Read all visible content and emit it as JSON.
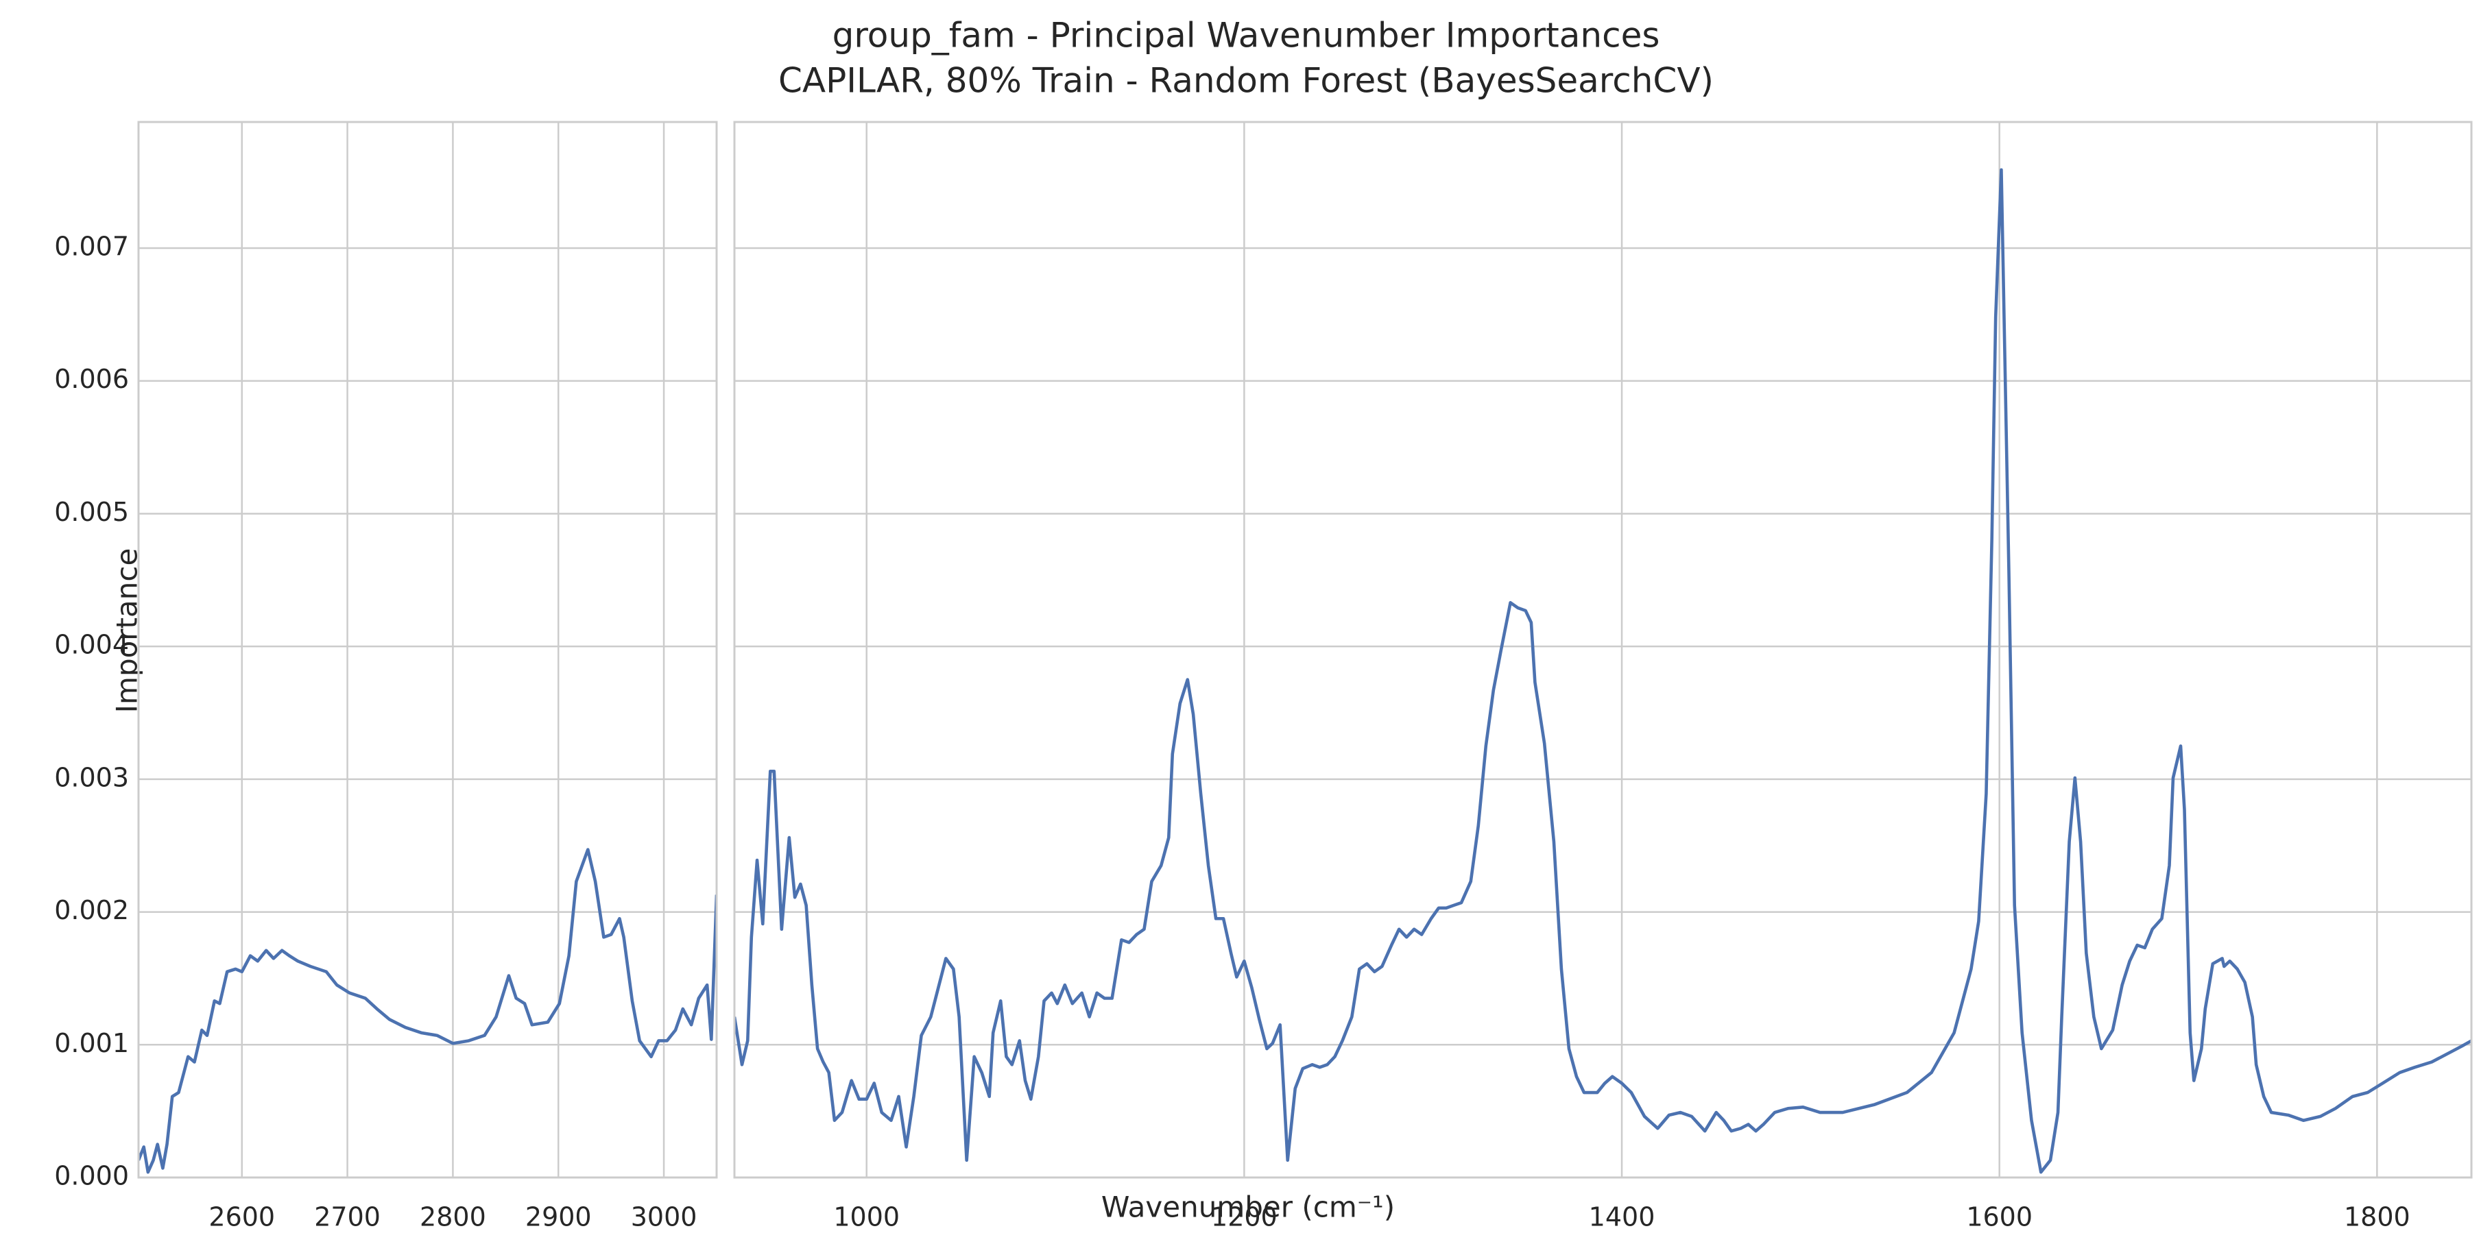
{
  "figure": {
    "title": "group_fam - Principal Wavenumber Importances",
    "subtitle": "CAPILAR, 80% Train - Random Forest (BayesSearchCV)",
    "x_label": "Wavenumber (cm⁻¹)",
    "y_label": "Importance"
  },
  "chart_data": [
    {
      "type": "line",
      "xlim": [
        2502,
        3050
      ],
      "ylim": [
        0,
        0.00795
      ],
      "grid": true,
      "xticks": [
        2600,
        2700,
        2800,
        2900,
        3000
      ],
      "yticks": [
        {
          "value": 0,
          "label": "0.000"
        },
        {
          "value": 0.001,
          "label": "0.001"
        },
        {
          "value": 0.002,
          "label": "0.002"
        },
        {
          "value": 0.003,
          "label": "0.003"
        },
        {
          "value": 0.004,
          "label": "0.004"
        },
        {
          "value": 0.005,
          "label": "0.005"
        },
        {
          "value": 0.006,
          "label": "0.006"
        },
        {
          "value": 0.007,
          "label": "0.007"
        }
      ],
      "series": [
        {
          "color": "#4c72b0",
          "x": [
            2502,
            2507,
            2511,
            2516,
            2520,
            2525,
            2529,
            2534,
            2540,
            2549,
            2555,
            2562,
            2567,
            2574,
            2579,
            2586,
            2594,
            2600,
            2608,
            2615,
            2623,
            2630,
            2638,
            2645,
            2653,
            2665,
            2680,
            2690,
            2702,
            2717,
            2728,
            2740,
            2755,
            2770,
            2785,
            2800,
            2815,
            2830,
            2841,
            2853,
            2860,
            2868,
            2875,
            2890,
            2901,
            2910,
            2917,
            2928,
            2935,
            2943,
            2950,
            2958,
            2962,
            2970,
            2977,
            2988,
            2995,
            3003,
            3011,
            3018,
            3026,
            3033,
            3041,
            3045,
            3050
          ],
          "values": [
            0.00013,
            0.00023,
            4e-05,
            0.00013,
            0.00025,
            7e-05,
            0.00025,
            0.00061,
            0.00064,
            0.00091,
            0.00087,
            0.00111,
            0.00107,
            0.00133,
            0.00131,
            0.00155,
            0.00157,
            0.00155,
            0.00167,
            0.00163,
            0.00171,
            0.00165,
            0.00171,
            0.00167,
            0.00163,
            0.00159,
            0.00155,
            0.00145,
            0.00139,
            0.00135,
            0.00127,
            0.00119,
            0.00113,
            0.00109,
            0.00107,
            0.00101,
            0.00103,
            0.00107,
            0.00121,
            0.00152,
            0.00135,
            0.00131,
            0.00115,
            0.00117,
            0.00131,
            0.00167,
            0.00223,
            0.00247,
            0.00223,
            0.00181,
            0.00183,
            0.00195,
            0.00181,
            0.00133,
            0.00103,
            0.00091,
            0.00103,
            0.00103,
            0.00111,
            0.00127,
            0.00115,
            0.00135,
            0.00145,
            0.00104,
            0.00213
          ]
        }
      ]
    },
    {
      "type": "line",
      "xlim": [
        930,
        1850
      ],
      "ylim": [
        0,
        0.00795
      ],
      "grid": true,
      "xticks": [
        1000,
        1200,
        1400,
        1600,
        1800
      ],
      "yticks": [
        0,
        0.001,
        0.002,
        0.003,
        0.004,
        0.005,
        0.006,
        0.007
      ],
      "series": [
        {
          "color": "#4c72b0",
          "x": [
            930,
            934,
            937,
            939,
            942,
            945,
            949,
            951,
            955,
            959,
            962,
            965,
            968,
            971,
            974,
            977,
            980,
            983,
            987,
            992,
            996,
            1000,
            1004,
            1008,
            1013,
            1017,
            1021,
            1025,
            1029,
            1034,
            1038,
            1042,
            1046,
            1049,
            1053,
            1057,
            1061,
            1065,
            1067,
            1071,
            1074,
            1077,
            1081,
            1084,
            1087,
            1091,
            1094,
            1098,
            1101,
            1105,
            1109,
            1114,
            1118,
            1122,
            1126,
            1130,
            1135,
            1139,
            1143,
            1147,
            1151,
            1156,
            1160,
            1162,
            1166,
            1170,
            1173,
            1177,
            1181,
            1185,
            1189,
            1193,
            1196,
            1200,
            1204,
            1208,
            1212,
            1215,
            1219,
            1223,
            1227,
            1231,
            1236,
            1240,
            1244,
            1248,
            1252,
            1257,
            1261,
            1265,
            1269,
            1273,
            1278,
            1282,
            1286,
            1290,
            1294,
            1299,
            1303,
            1307,
            1311,
            1315,
            1320,
            1324,
            1328,
            1332,
            1336,
            1341,
            1345,
            1349,
            1352,
            1354,
            1359,
            1364,
            1368,
            1372,
            1376,
            1380,
            1387,
            1391,
            1395,
            1400,
            1405,
            1412,
            1419,
            1425,
            1431,
            1437,
            1444,
            1450,
            1454,
            1458,
            1463,
            1467,
            1471,
            1475,
            1481,
            1488,
            1496,
            1505,
            1517,
            1534,
            1551,
            1564,
            1576,
            1585,
            1589,
            1593,
            1596,
            1598,
            1601,
            1605,
            1608,
            1612,
            1617,
            1622,
            1627,
            1631,
            1633,
            1637,
            1640,
            1643,
            1646,
            1650,
            1654,
            1660,
            1665,
            1669,
            1673,
            1677,
            1681,
            1686,
            1690,
            1692,
            1696,
            1698,
            1701,
            1703,
            1707,
            1709,
            1713,
            1718,
            1719,
            1722,
            1726,
            1730,
            1734,
            1736,
            1740,
            1744,
            1753,
            1761,
            1770,
            1778,
            1787,
            1795,
            1803,
            1812,
            1820,
            1829,
            1837,
            1845,
            1850
          ],
          "values": [
            0.00121,
            0.00085,
            0.00103,
            0.00181,
            0.00239,
            0.00191,
            0.00306,
            0.00306,
            0.00187,
            0.00256,
            0.00211,
            0.00221,
            0.00205,
            0.00145,
            0.00097,
            0.00087,
            0.00079,
            0.00043,
            0.00049,
            0.00073,
            0.00059,
            0.00059,
            0.00071,
            0.00049,
            0.00043,
            0.00061,
            0.00023,
            0.00061,
            0.00107,
            0.00121,
            0.00143,
            0.00165,
            0.00157,
            0.00121,
            0.00013,
            0.00091,
            0.00079,
            0.00061,
            0.00109,
            0.00133,
            0.00091,
            0.00085,
            0.00103,
            0.00073,
            0.00059,
            0.00091,
            0.00133,
            0.00139,
            0.00131,
            0.00145,
            0.00131,
            0.00139,
            0.00121,
            0.00139,
            0.00135,
            0.00135,
            0.00179,
            0.00177,
            0.00183,
            0.00187,
            0.00223,
            0.00235,
            0.00256,
            0.00319,
            0.00357,
            0.00375,
            0.00349,
            0.00289,
            0.00235,
            0.00195,
            0.00195,
            0.00169,
            0.00151,
            0.00163,
            0.00143,
            0.00119,
            0.00097,
            0.00101,
            0.00115,
            0.00013,
            0.00067,
            0.00082,
            0.00085,
            0.00083,
            0.00085,
            0.00091,
            0.00103,
            0.00121,
            0.00157,
            0.00161,
            0.00155,
            0.00159,
            0.00175,
            0.00187,
            0.00181,
            0.00187,
            0.00183,
            0.00195,
            0.00203,
            0.00203,
            0.00205,
            0.00207,
            0.00223,
            0.00265,
            0.00325,
            0.00367,
            0.00397,
            0.00433,
            0.00429,
            0.00427,
            0.00418,
            0.00373,
            0.00327,
            0.00253,
            0.00157,
            0.00097,
            0.00076,
            0.00064,
            0.00064,
            0.00071,
            0.00076,
            0.00071,
            0.00064,
            0.00046,
            0.00037,
            0.00047,
            0.00049,
            0.00046,
            0.00035,
            0.00049,
            0.00043,
            0.00035,
            0.00037,
            0.0004,
            0.00035,
            0.0004,
            0.00049,
            0.00052,
            0.00053,
            0.00049,
            0.00049,
            0.00055,
            0.00064,
            0.00079,
            0.00109,
            0.00157,
            0.00193,
            0.00289,
            0.00481,
            0.00648,
            0.00759,
            0.00457,
            0.00205,
            0.00109,
            0.00043,
            4e-05,
            0.00013,
            0.00049,
            0.00121,
            0.00253,
            0.00301,
            0.00253,
            0.00169,
            0.00121,
            0.00097,
            0.00111,
            0.00145,
            0.00163,
            0.00175,
            0.00173,
            0.00187,
            0.00195,
            0.00235,
            0.00301,
            0.00325,
            0.00277,
            0.00109,
            0.00073,
            0.00097,
            0.00127,
            0.00161,
            0.00165,
            0.00159,
            0.00163,
            0.00157,
            0.00147,
            0.00121,
            0.00085,
            0.00061,
            0.00049,
            0.00047,
            0.00043,
            0.00046,
            0.00052,
            0.00061,
            0.00064,
            0.00071,
            0.00079,
            0.00083,
            0.00087,
            0.00093,
            0.00099,
            0.00103
          ]
        }
      ]
    }
  ]
}
